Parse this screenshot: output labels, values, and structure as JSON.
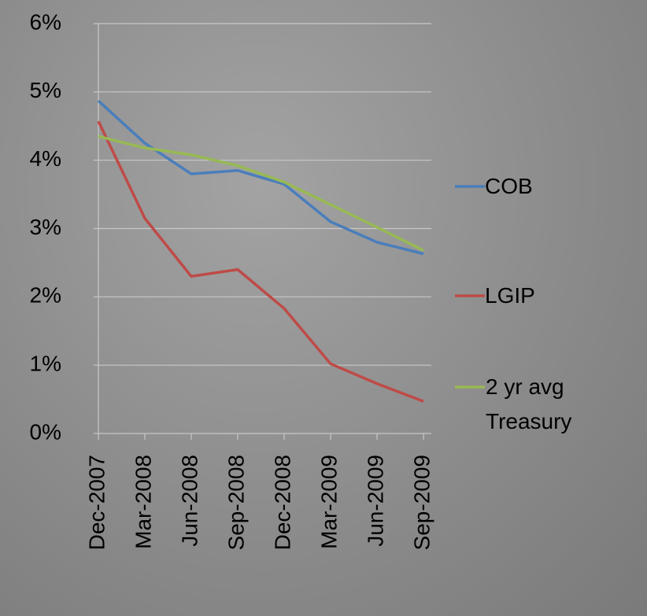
{
  "chart_data": {
    "type": "line",
    "categories": [
      "Dec-2007",
      "Mar-2008",
      "Jun-2008",
      "Sep-2008",
      "Dec-2008",
      "Mar-2009",
      "Jun-2009",
      "Sep-2009"
    ],
    "series": [
      {
        "name": "COB",
        "color": "#4a7ebb",
        "values": [
          4.87,
          4.25,
          3.8,
          3.85,
          3.65,
          3.1,
          2.8,
          2.63
        ]
      },
      {
        "name": "LGIP",
        "color": "#be4b48",
        "values": [
          4.57,
          3.15,
          2.3,
          2.4,
          1.83,
          1.02,
          0.73,
          0.47
        ]
      },
      {
        "name": "2 yr avg Treasury",
        "color": "#98b954",
        "values": [
          4.35,
          4.18,
          4.08,
          3.92,
          3.68,
          3.35,
          3.02,
          2.68
        ]
      }
    ],
    "ylim": [
      0,
      6
    ],
    "yticks": [
      {
        "value": 0,
        "label": "0%"
      },
      {
        "value": 1,
        "label": "1%"
      },
      {
        "value": 2,
        "label": "2%"
      },
      {
        "value": 3,
        "label": "3%"
      },
      {
        "value": 4,
        "label": "4%"
      },
      {
        "value": 5,
        "label": "5%"
      },
      {
        "value": 6,
        "label": "6%"
      }
    ],
    "grid": true,
    "legend": "right"
  }
}
